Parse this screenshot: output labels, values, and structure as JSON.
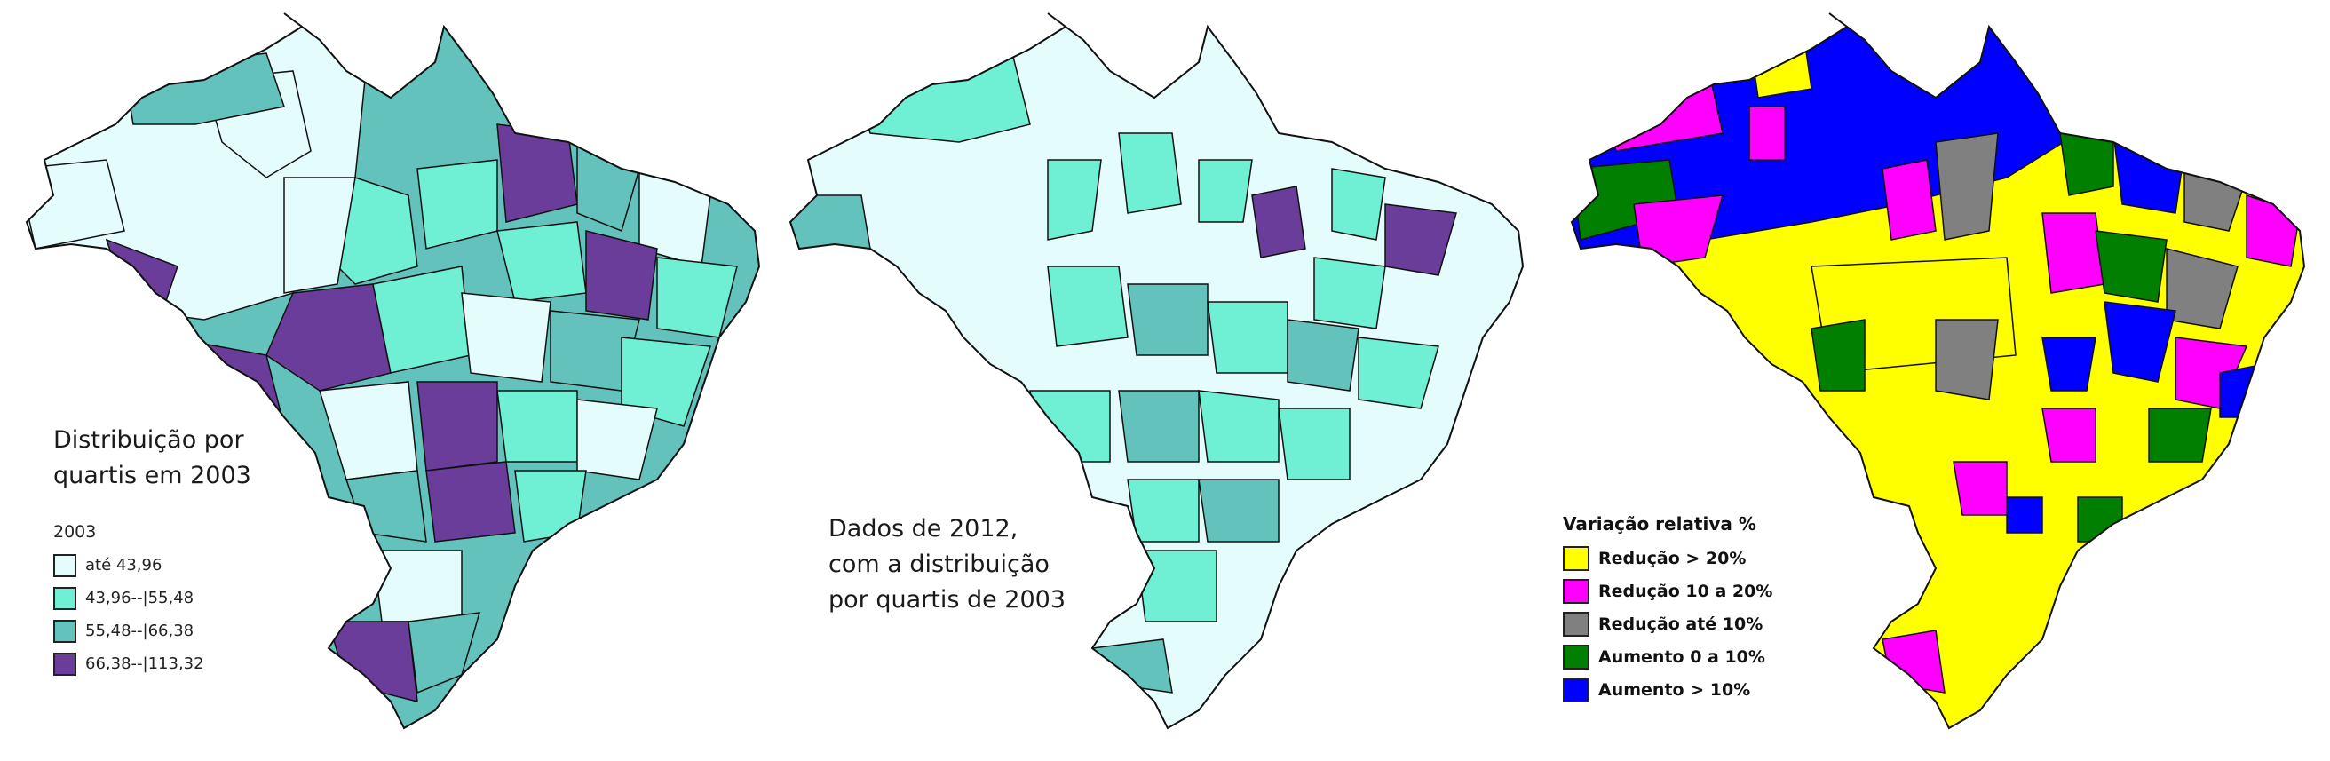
{
  "panels": {
    "map_2003": {
      "caption_lines": [
        "Distribuição por",
        "quartis em 2003"
      ],
      "legend": {
        "title": "2003",
        "items": [
          {
            "label": "até 43,96",
            "color": "#e4fcfb"
          },
          {
            "label": "43,96--|55,48",
            "color": "#6ff0d4"
          },
          {
            "label": "55,48--|66,38",
            "color": "#63c3bc"
          },
          {
            "label": "66,38--|113,32",
            "color": "#6a3d9a"
          }
        ]
      }
    },
    "map_2012": {
      "caption_lines": [
        "Dados de 2012,",
        "com a distribuição",
        "por quartis de 2003"
      ]
    },
    "map_variation": {
      "legend": {
        "title": "Variação relativa %",
        "items": [
          {
            "label": "Redução > 20%",
            "color": "#ffff00"
          },
          {
            "label": "Redução 10 a 20%",
            "color": "#ff00ff"
          },
          {
            "label": "Redução até 10%",
            "color": "#808080"
          },
          {
            "label": "Aumento 0 a 10%",
            "color": "#007f00"
          },
          {
            "label": "Aumento > 10%",
            "color": "#0000ff"
          }
        ]
      }
    }
  },
  "boundary_color": "#111111"
}
